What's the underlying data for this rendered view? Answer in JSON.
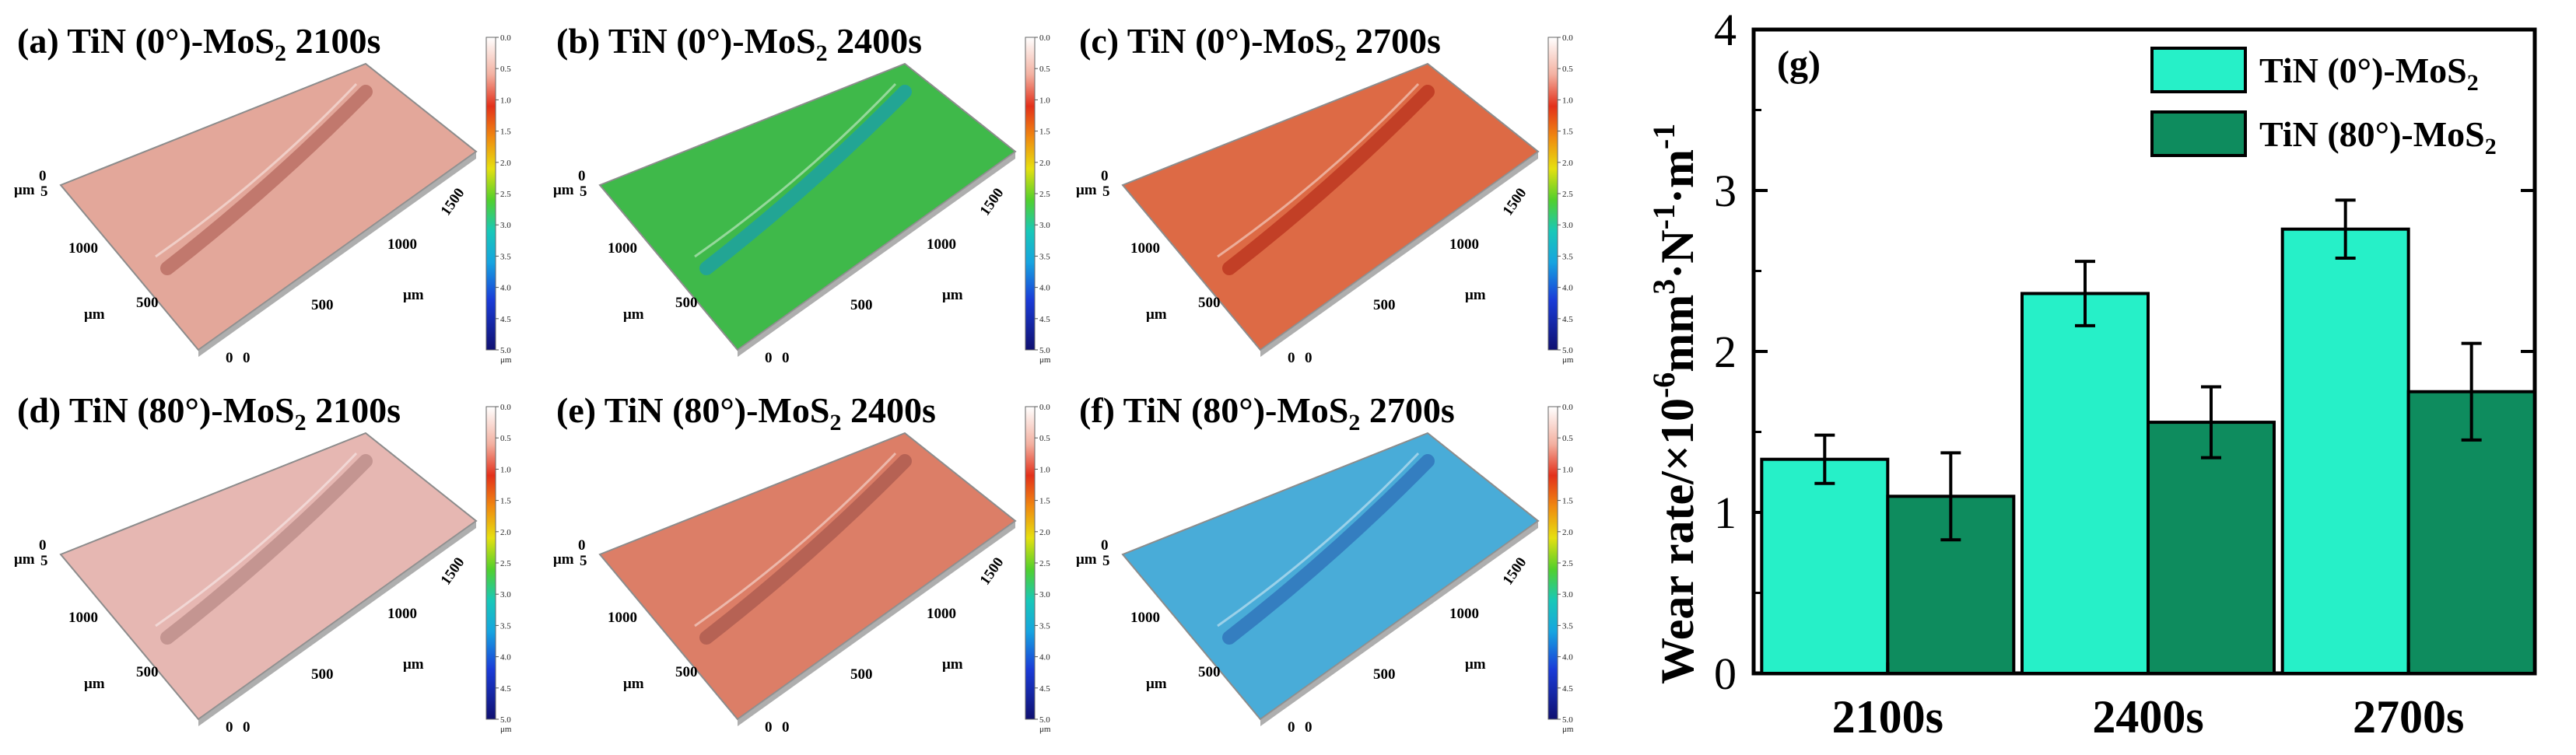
{
  "panels": [
    {
      "label": "(a)",
      "material": "TiN (0°)-MoS",
      "sub": "2",
      "time": "2100s",
      "surface": "#e3a79a",
      "track": "#b5685e"
    },
    {
      "label": "(b)",
      "material": "TiN (0°)-MoS",
      "sub": "2",
      "time": "2400s",
      "surface": "#3fb94a",
      "track": "#1a9fae"
    },
    {
      "label": "(c)",
      "material": "TiN (0°)-MoS",
      "sub": "2",
      "time": "2700s",
      "surface": "#dd6a45",
      "track": "#b8321c"
    },
    {
      "label": "(d)",
      "material": "TiN (80°)-MoS",
      "sub": "2",
      "time": "2100s",
      "surface": "#e6b7b2",
      "track": "#b88a85"
    },
    {
      "label": "(e)",
      "material": "TiN (80°)-MoS",
      "sub": "2",
      "time": "2400s",
      "surface": "#dc7e67",
      "track": "#a9594d"
    },
    {
      "label": "(f)",
      "material": "TiN (80°)-MoS",
      "sub": "2",
      "time": "2700s",
      "surface": "#49acd8",
      "track": "#2e6fb8"
    }
  ],
  "axis_3d": {
    "unit": "μm",
    "y0": "0",
    "y5": "5",
    "ticks_right": [
      "1500",
      "1000",
      "500"
    ],
    "ticks_left": [
      "1000",
      "500"
    ],
    "origin": "0",
    "origin2": "0"
  },
  "colorbar": {
    "ticks": [
      "0.0",
      "0.5",
      "1.0",
      "1.5",
      "2.0",
      "2.5",
      "3.0",
      "3.5",
      "4.0",
      "4.5",
      "5.0"
    ],
    "unit": "μm"
  },
  "chart_data": {
    "type": "bar",
    "panel_label": "(g)",
    "categories": [
      "2100s",
      "2400s",
      "2700s"
    ],
    "series": [
      {
        "name": "TiN (0°)-MoS",
        "name_sub": "2",
        "color": "#26f0c8",
        "values": [
          1.33,
          2.36,
          2.76
        ],
        "errors": [
          0.15,
          0.2,
          0.18
        ]
      },
      {
        "name": "TiN (80°)-MoS",
        "name_sub": "2",
        "color": "#0e8c5e",
        "values": [
          1.1,
          1.56,
          1.75
        ],
        "errors": [
          0.27,
          0.22,
          0.3
        ]
      }
    ],
    "yticks": [
      "0",
      "1",
      "2",
      "3",
      "4"
    ],
    "ylim": [
      0,
      4
    ],
    "ylabel": "Wear rate/×10",
    "ylabel_exp": "-6",
    "ylabel_unit": "mm",
    "ylabel_unit_exp": "3",
    "ylabel_n": "·N",
    "ylabel_n_exp": "-1",
    "ylabel_m": "·m",
    "ylabel_m_exp": "-1"
  }
}
